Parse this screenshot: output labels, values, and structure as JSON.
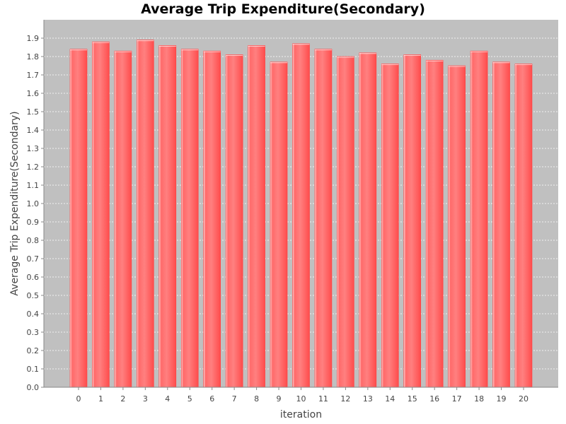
{
  "chart_data": {
    "type": "bar",
    "title": "Average Trip Expenditure(Secondary)",
    "xlabel": "iteration",
    "ylabel": "Average Trip Expenditure(Secondary)",
    "categories": [
      "0",
      "1",
      "2",
      "3",
      "4",
      "5",
      "6",
      "7",
      "8",
      "9",
      "10",
      "11",
      "12",
      "13",
      "14",
      "15",
      "16",
      "17",
      "18",
      "19",
      "20"
    ],
    "values": [
      1.84,
      1.88,
      1.83,
      1.89,
      1.86,
      1.84,
      1.83,
      1.81,
      1.86,
      1.77,
      1.87,
      1.84,
      1.8,
      1.82,
      1.76,
      1.81,
      1.78,
      1.75,
      1.83,
      1.77,
      1.76
    ],
    "ylim": [
      0,
      2.0
    ],
    "yticks": [
      "0.0",
      "0.1",
      "0.2",
      "0.3",
      "0.4",
      "0.5",
      "0.6",
      "0.7",
      "0.8",
      "0.9",
      "1.0",
      "1.1",
      "1.2",
      "1.3",
      "1.4",
      "1.5",
      "1.6",
      "1.7",
      "1.8",
      "1.9"
    ],
    "grid": true,
    "colors": {
      "bar": "#ff5a5a",
      "plot_background": "#c0c0c0",
      "grid": "#ffffff"
    }
  }
}
